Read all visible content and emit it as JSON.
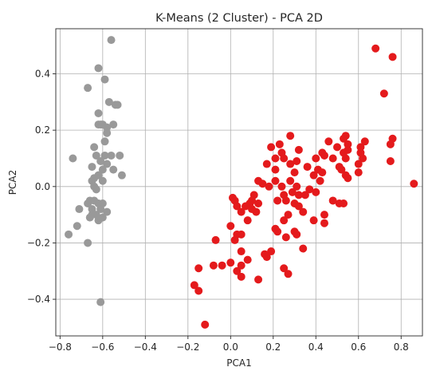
{
  "chart_data": {
    "type": "scatter",
    "title": "K-Means (2 Cluster) - PCA 2D",
    "xlabel": "PCA1",
    "ylabel": "PCA2",
    "xlim": [
      -0.82,
      0.9
    ],
    "ylim": [
      -0.53,
      0.56
    ],
    "xticks": [
      -0.8,
      -0.6,
      -0.4,
      -0.2,
      0.0,
      0.2,
      0.4,
      0.6,
      0.8
    ],
    "yticks": [
      -0.4,
      -0.2,
      0.0,
      0.2,
      0.4
    ],
    "xtick_labels": [
      "−0.8",
      "−0.6",
      "−0.4",
      "−0.2",
      "0.0",
      "0.2",
      "0.4",
      "0.6",
      "0.8"
    ],
    "ytick_labels": [
      "−0.4",
      "−0.2",
      "0.0",
      "0.2",
      "0.4"
    ],
    "grid": true,
    "series": [
      {
        "color": "#999999",
        "points": [
          [
            -0.56,
            0.52
          ],
          [
            -0.62,
            0.42
          ],
          [
            -0.59,
            0.38
          ],
          [
            -0.67,
            0.35
          ],
          [
            -0.57,
            0.3
          ],
          [
            -0.54,
            0.29
          ],
          [
            -0.53,
            0.29
          ],
          [
            -0.62,
            0.26
          ],
          [
            -0.61,
            0.22
          ],
          [
            -0.62,
            0.22
          ],
          [
            -0.6,
            0.22
          ],
          [
            -0.58,
            0.21
          ],
          [
            -0.55,
            0.22
          ],
          [
            -0.58,
            0.19
          ],
          [
            -0.59,
            0.16
          ],
          [
            -0.64,
            0.14
          ],
          [
            -0.63,
            0.11
          ],
          [
            -0.59,
            0.11
          ],
          [
            -0.56,
            0.11
          ],
          [
            -0.52,
            0.11
          ],
          [
            -0.61,
            0.09
          ],
          [
            -0.58,
            0.08
          ],
          [
            -0.74,
            0.1
          ],
          [
            -0.65,
            0.07
          ],
          [
            -0.6,
            0.06
          ],
          [
            -0.55,
            0.06
          ],
          [
            -0.62,
            0.04
          ],
          [
            -0.64,
            0.03
          ],
          [
            -0.51,
            0.04
          ],
          [
            -0.6,
            0.02
          ],
          [
            -0.65,
            0.02
          ],
          [
            -0.64,
            0.0
          ],
          [
            -0.63,
            -0.01
          ],
          [
            -0.66,
            -0.05
          ],
          [
            -0.64,
            -0.05
          ],
          [
            -0.62,
            -0.06
          ],
          [
            -0.67,
            -0.06
          ],
          [
            -0.6,
            -0.06
          ],
          [
            -0.61,
            -0.08
          ],
          [
            -0.65,
            -0.08
          ],
          [
            -0.71,
            -0.08
          ],
          [
            -0.58,
            -0.09
          ],
          [
            -0.63,
            -0.1
          ],
          [
            -0.6,
            -0.11
          ],
          [
            -0.65,
            -0.1
          ],
          [
            -0.62,
            -0.12
          ],
          [
            -0.66,
            -0.11
          ],
          [
            -0.72,
            -0.14
          ],
          [
            -0.76,
            -0.17
          ],
          [
            -0.67,
            -0.2
          ],
          [
            -0.61,
            -0.41
          ]
        ]
      },
      {
        "color": "#e41a1c",
        "points": [
          [
            0.68,
            0.49
          ],
          [
            0.76,
            0.46
          ],
          [
            0.72,
            0.33
          ],
          [
            0.86,
            0.01
          ],
          [
            0.76,
            0.17
          ],
          [
            0.75,
            0.15
          ],
          [
            0.75,
            0.09
          ],
          [
            0.63,
            0.16
          ],
          [
            0.61,
            0.14
          ],
          [
            0.61,
            0.12
          ],
          [
            0.62,
            0.1
          ],
          [
            0.6,
            0.08
          ],
          [
            0.6,
            0.05
          ],
          [
            0.54,
            0.18
          ],
          [
            0.53,
            0.17
          ],
          [
            0.55,
            0.15
          ],
          [
            0.5,
            0.14
          ],
          [
            0.46,
            0.16
          ],
          [
            0.43,
            0.12
          ],
          [
            0.44,
            0.11
          ],
          [
            0.48,
            0.1
          ],
          [
            0.53,
            0.12
          ],
          [
            0.55,
            0.13
          ],
          [
            0.54,
            0.1
          ],
          [
            0.4,
            0.1
          ],
          [
            0.41,
            0.06
          ],
          [
            0.43,
            0.05
          ],
          [
            0.39,
            0.04
          ],
          [
            0.36,
            0.07
          ],
          [
            0.42,
            0.02
          ],
          [
            0.51,
            0.07
          ],
          [
            0.52,
            0.06
          ],
          [
            0.54,
            0.04
          ],
          [
            0.55,
            0.03
          ],
          [
            0.51,
            -0.06
          ],
          [
            0.53,
            -0.06
          ],
          [
            0.48,
            -0.05
          ],
          [
            0.37,
            -0.01
          ],
          [
            0.35,
            -0.03
          ],
          [
            0.4,
            -0.02
          ],
          [
            0.44,
            -0.1
          ],
          [
            0.44,
            -0.13
          ],
          [
            0.39,
            -0.12
          ],
          [
            0.32,
            0.13
          ],
          [
            0.28,
            0.18
          ],
          [
            0.23,
            0.15
          ],
          [
            0.24,
            0.12
          ],
          [
            0.21,
            0.1
          ],
          [
            0.25,
            0.1
          ],
          [
            0.19,
            0.14
          ],
          [
            0.17,
            0.08
          ],
          [
            0.21,
            0.06
          ],
          [
            0.28,
            0.08
          ],
          [
            0.31,
            0.09
          ],
          [
            0.3,
            0.05
          ],
          [
            0.21,
            0.02
          ],
          [
            0.15,
            0.01
          ],
          [
            0.13,
            0.02
          ],
          [
            0.18,
            0.0
          ],
          [
            0.24,
            0.0
          ],
          [
            0.28,
            0.02
          ],
          [
            0.31,
            0.0
          ],
          [
            0.29,
            -0.02
          ],
          [
            0.32,
            -0.03
          ],
          [
            0.25,
            -0.03
          ],
          [
            0.22,
            -0.05
          ],
          [
            0.26,
            -0.05
          ],
          [
            0.3,
            -0.06
          ],
          [
            0.32,
            -0.07
          ],
          [
            0.34,
            -0.09
          ],
          [
            0.27,
            -0.1
          ],
          [
            0.25,
            -0.12
          ],
          [
            0.3,
            -0.16
          ],
          [
            0.31,
            -0.17
          ],
          [
            0.34,
            -0.22
          ],
          [
            0.22,
            -0.16
          ],
          [
            0.26,
            -0.18
          ],
          [
            0.19,
            -0.23
          ],
          [
            0.17,
            -0.25
          ],
          [
            0.16,
            -0.24
          ],
          [
            0.21,
            -0.15
          ],
          [
            0.11,
            -0.03
          ],
          [
            0.13,
            -0.06
          ],
          [
            0.12,
            -0.09
          ],
          [
            0.1,
            -0.05
          ],
          [
            0.09,
            -0.06
          ],
          [
            0.07,
            -0.07
          ],
          [
            0.1,
            -0.08
          ],
          [
            0.08,
            -0.12
          ],
          [
            0.05,
            -0.09
          ],
          [
            0.03,
            -0.07
          ],
          [
            0.01,
            -0.04
          ],
          [
            0.02,
            -0.05
          ],
          [
            0.0,
            -0.14
          ],
          [
            0.03,
            -0.17
          ],
          [
            0.05,
            -0.17
          ],
          [
            0.02,
            -0.19
          ],
          [
            0.0,
            -0.27
          ],
          [
            0.05,
            -0.23
          ],
          [
            0.08,
            -0.26
          ],
          [
            0.05,
            -0.28
          ],
          [
            0.03,
            -0.3
          ],
          [
            0.05,
            -0.32
          ],
          [
            0.13,
            -0.33
          ],
          [
            0.25,
            -0.29
          ],
          [
            0.27,
            -0.31
          ],
          [
            -0.04,
            -0.28
          ],
          [
            -0.07,
            -0.19
          ],
          [
            -0.08,
            -0.28
          ],
          [
            -0.15,
            -0.29
          ],
          [
            -0.17,
            -0.35
          ],
          [
            -0.15,
            -0.37
          ],
          [
            -0.12,
            -0.49
          ]
        ]
      }
    ]
  }
}
